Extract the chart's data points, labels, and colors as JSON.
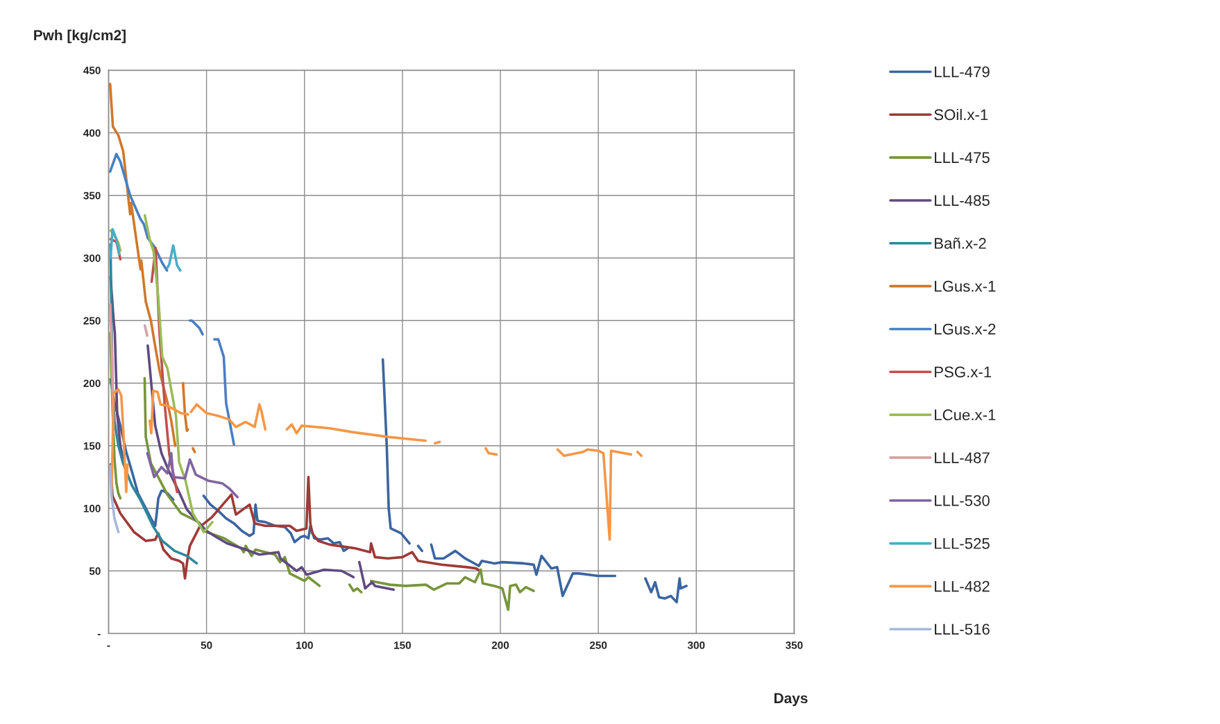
{
  "chart_data": {
    "type": "line",
    "xlabel": "Days",
    "ylabel": "Pwh [kg/cm2]",
    "xlim": [
      0,
      350
    ],
    "xticks": [
      {
        "value": 0,
        "label": "-"
      },
      50,
      100,
      150,
      200,
      250,
      300,
      350
    ],
    "ylim": [
      0,
      450
    ],
    "yticks": [
      {
        "value": 0,
        "label": "-"
      },
      50,
      100,
      150,
      200,
      250,
      300,
      350,
      400,
      450
    ],
    "grid": true,
    "legend": "right",
    "marker": "none",
    "line_style": "solid",
    "series": [
      {
        "name": "LLL-479",
        "color": "#3b65a0",
        "x": [
          1,
          3,
          6,
          9,
          12,
          15,
          18,
          21.6,
          23.8,
          24.5,
          25.4,
          27,
          28,
          30,
          33,
          34,
          48.5,
          52,
          56,
          60,
          64,
          68,
          72,
          74,
          75,
          76,
          80,
          85,
          90,
          93,
          95,
          98,
          100,
          102,
          103,
          105,
          108,
          112,
          115,
          118,
          120,
          122,
          130,
          140,
          142,
          143,
          144,
          149.4,
          153.6,
          156,
          158,
          160,
          162,
          164.7,
          166.6,
          171,
          177,
          182,
          189,
          190.5,
          197,
          201,
          212,
          217,
          218.4,
          221,
          226,
          229,
          231.8,
          237,
          240,
          250,
          258.6,
          265,
          274,
          277,
          279,
          281,
          284,
          287,
          290,
          291.5,
          292,
          295
        ],
        "values": [
          203,
          185,
          166,
          145,
          129,
          112,
          103,
          92,
          86,
          95,
          108,
          114,
          114,
          112,
          107,
          null,
          110,
          103,
          98,
          92,
          88,
          82,
          78,
          80,
          103,
          90,
          89,
          86,
          85,
          80,
          73,
          77,
          78,
          76,
          86,
          76,
          75,
          76,
          72,
          73,
          66,
          68,
          null,
          219,
          150,
          100,
          84,
          80,
          72,
          null,
          70,
          66,
          null,
          71,
          60,
          60,
          66,
          60,
          54,
          58,
          56,
          57,
          56,
          55,
          47,
          62,
          52,
          53,
          30,
          48,
          48,
          46,
          46,
          null,
          44,
          33,
          41,
          29,
          28,
          30,
          25,
          44,
          36,
          38
        ]
      },
      {
        "name": "SOil.x-1",
        "color": "#9e3a38",
        "x": [
          1,
          2,
          6,
          13,
          19,
          23.8,
          25.4,
          28,
          32,
          36,
          38,
          39,
          40.5,
          41.5,
          46.4,
          52.8,
          62.7,
          65,
          72,
          74.6,
          80,
          92.5,
          96,
          101,
          102,
          103,
          104,
          107,
          113,
          126,
          133.5,
          134,
          136,
          142.5,
          150,
          155,
          158,
          170,
          183,
          187.6,
          189.6
        ],
        "values": [
          135,
          110,
          96,
          81,
          74,
          75,
          80,
          67,
          60,
          58,
          56,
          44,
          62,
          70,
          85,
          93,
          111,
          95,
          103,
          88,
          86,
          86,
          82,
          84,
          125,
          88,
          80,
          74,
          71,
          68,
          65,
          72,
          61,
          60,
          61,
          65,
          58,
          55,
          53,
          52,
          50
        ]
      },
      {
        "name": "LLL-475",
        "color": "#77953b",
        "x": [
          0.9,
          2,
          3,
          4,
          5,
          6,
          6.5,
          18.4,
          19,
          21.6,
          26,
          30,
          37,
          46,
          50,
          59,
          67.7,
          69,
          70,
          73,
          75,
          85,
          87.5,
          90,
          92.5,
          100,
          102,
          107.7,
          115,
          123,
          125,
          127,
          129,
          131,
          134,
          137,
          143.6,
          151.5,
          162,
          166,
          172.6,
          179,
          182,
          187,
          190,
          191,
          197,
          201,
          204,
          205,
          208,
          210,
          213,
          217
        ],
        "values": [
          240,
          180,
          140,
          120,
          112,
          108,
          null,
          204,
          157,
          136,
          123,
          111,
          96,
          89,
          81,
          76,
          68,
          65,
          70,
          62,
          67,
          63,
          57,
          61,
          48,
          42,
          45,
          38,
          null,
          39,
          34,
          36,
          33,
          null,
          42,
          41,
          39,
          38,
          39,
          35,
          40,
          40,
          45,
          41,
          51,
          40,
          38,
          36,
          19,
          38,
          39,
          33,
          37,
          34
        ]
      },
      {
        "name": "LLL-485",
        "color": "#5f4a80",
        "x": [
          1,
          2.6,
          3.2,
          4.4,
          6,
          8,
          14,
          20,
          21.6,
          23.8,
          27,
          31,
          35.7,
          40,
          45,
          50,
          55,
          60.5,
          70,
          77,
          86.7,
          87.7,
          96,
          98.6,
          101,
          110,
          119,
          125,
          126.5,
          128,
          131,
          134.5,
          136,
          145.5
        ],
        "values": [
          285,
          250,
          240,
          175,
          150,
          135,
          null,
          230,
          203,
          166,
          144,
          129,
          114,
          99,
          90,
          82,
          77,
          72,
          67,
          63,
          65,
          60,
          50,
          53,
          47,
          51,
          50,
          45,
          null,
          57,
          36,
          41,
          38,
          35
        ]
      },
      {
        "name": "Bañ.x-2",
        "color": "#2e879c",
        "x": [
          1,
          1.5,
          2,
          3,
          5,
          7.4,
          12,
          15.8,
          19,
          22.6,
          27.4,
          33.7,
          40,
          45
        ],
        "values": [
          311,
          250,
          200,
          170,
          150,
          136,
          118,
          108,
          98,
          86,
          74,
          66,
          62,
          56
        ]
      },
      {
        "name": "LGus.x-1",
        "color": "#d0782c",
        "x": [
          0.8,
          2.2,
          5,
          7.5,
          11,
          11.5,
          16.3,
          16.7,
          19,
          21.6,
          23.4,
          26,
          28,
          30,
          32,
          34,
          36,
          38,
          39,
          40,
          40.5,
          42,
          43,
          44
        ],
        "values": [
          439,
          405,
          398,
          385,
          335,
          344,
          291,
          298,
          265,
          250,
          233,
          210,
          197,
          185,
          170,
          150,
          null,
          200,
          175,
          162,
          163,
          null,
          148,
          145
        ]
      },
      {
        "name": "LGus.x-2",
        "color": "#4a7fc4",
        "x": [
          0.8,
          4,
          6,
          11,
          16.3,
          18,
          20,
          23.8,
          27.4,
          29.8,
          35,
          41.5,
          42.5,
          46.4,
          48,
          51,
          54,
          56,
          58.8,
          60,
          64
        ],
        "values": [
          369,
          383,
          377,
          350,
          331,
          327,
          316,
          308,
          296,
          290,
          null,
          250,
          250,
          244,
          239,
          null,
          235,
          235,
          221,
          184,
          151
        ]
      },
      {
        "name": "PSG.x-1",
        "color": "#c1504d",
        "x": [
          1,
          4,
          6,
          14,
          22,
          24,
          26,
          28.6,
          31,
          35
        ],
        "values": [
          315,
          313,
          299,
          null,
          281,
          308,
          240,
          184,
          143,
          113
        ]
      },
      {
        "name": "LCue.x-1",
        "color": "#9bbb59",
        "x": [
          1,
          3,
          5,
          6,
          12,
          18.5,
          21,
          23,
          25.4,
          27.4,
          30,
          34.4,
          36,
          39.3,
          43,
          48.6,
          53
        ],
        "values": [
          322,
          318,
          312,
          306,
          null,
          334,
          315,
          305,
          268,
          221,
          212,
          174,
          137,
          122,
          96,
          81,
          89
        ]
      },
      {
        "name": "LLL-487",
        "color": "#d9a0a0",
        "x": [
          0.8,
          1.5,
          2,
          2.5,
          10,
          18.5,
          19.7
        ],
        "values": [
          263,
          235,
          200,
          160,
          null,
          246,
          238
        ]
      },
      {
        "name": "LLL-530",
        "color": "#8064a2",
        "x": [
          19.8,
          23.3,
          27,
          30,
          32,
          33,
          39,
          41.5,
          44.5,
          51,
          58,
          61.5,
          65.8
        ],
        "values": [
          144,
          125,
          133,
          128,
          144,
          125,
          124,
          139,
          127,
          122,
          120,
          116,
          109
        ]
      },
      {
        "name": "LLL-525",
        "color": "#4bacc6",
        "x": [
          1,
          2,
          4,
          5.5,
          18,
          30,
          31,
          33,
          35,
          36.6
        ],
        "values": [
          300,
          323,
          315,
          303,
          null,
          292,
          295,
          310,
          294,
          290
        ]
      },
      {
        "name": "LLL-482",
        "color": "#f79646",
        "x": [
          1.5,
          2.6,
          5,
          6.5,
          7.6,
          9,
          9.6,
          15,
          21,
          21.8,
          22.8,
          25,
          26.5,
          30,
          37,
          40.5,
          41.2,
          42,
          45,
          50,
          55.7,
          61.6,
          65,
          70,
          74.6,
          77,
          78,
          80,
          85,
          91,
          93.5,
          96,
          98.6,
          112.6,
          124,
          143,
          161.8,
          164,
          166.6,
          169,
          180,
          192.5,
          194,
          198,
          210,
          229.2,
          232.5,
          242,
          244.6,
          250,
          252.6,
          255.8,
          256.5,
          266.7,
          268,
          270,
          272
        ],
        "values": [
          110,
          192,
          195,
          190,
          160,
          113,
          135,
          null,
          170,
          160,
          194,
          193,
          183,
          182,
          176,
          175,
          null,
          177,
          183,
          176,
          174,
          171,
          165,
          169,
          165,
          183,
          178,
          163,
          null,
          163,
          167,
          160,
          166,
          164,
          161,
          157,
          154,
          null,
          152,
          153,
          null,
          148,
          144,
          143,
          null,
          147,
          142,
          145,
          147,
          146,
          144,
          75,
          146,
          143,
          null,
          145,
          142
        ]
      },
      {
        "name": "LLL-516",
        "color": "#a7b8da",
        "x": [
          0.8,
          1.5,
          3,
          5
        ],
        "values": [
          134,
          110,
          92,
          81
        ]
      }
    ]
  }
}
